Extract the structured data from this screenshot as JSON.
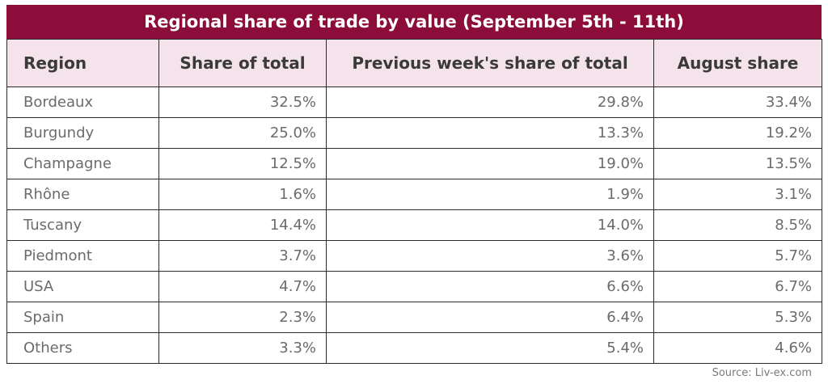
{
  "colors": {
    "title_bg": "#8c0c3a",
    "header_bg": "#f4e3ea",
    "border": "#2b2b2b"
  },
  "chart_data": {
    "type": "table",
    "title": "Regional share of trade by value (September 5th - 11th)",
    "columns": [
      "Region",
      "Share of total",
      "Previous week's share of total",
      "August share"
    ],
    "rows": [
      [
        "Bordeaux",
        "32.5%",
        "29.8%",
        "33.4%"
      ],
      [
        "Burgundy",
        "25.0%",
        "13.3%",
        "19.2%"
      ],
      [
        "Champagne",
        "12.5%",
        "19.0%",
        "13.5%"
      ],
      [
        "Rhône",
        "1.6%",
        "1.9%",
        "3.1%"
      ],
      [
        "Tuscany",
        "14.4%",
        "14.0%",
        "8.5%"
      ],
      [
        "Piedmont",
        "3.7%",
        "3.6%",
        "5.7%"
      ],
      [
        "USA",
        "4.7%",
        "6.6%",
        "6.7%"
      ],
      [
        "Spain",
        "2.3%",
        "6.4%",
        "5.3%"
      ],
      [
        "Others",
        "3.3%",
        "5.4%",
        "4.6%"
      ]
    ],
    "source": "Source: Liv-ex.com"
  }
}
